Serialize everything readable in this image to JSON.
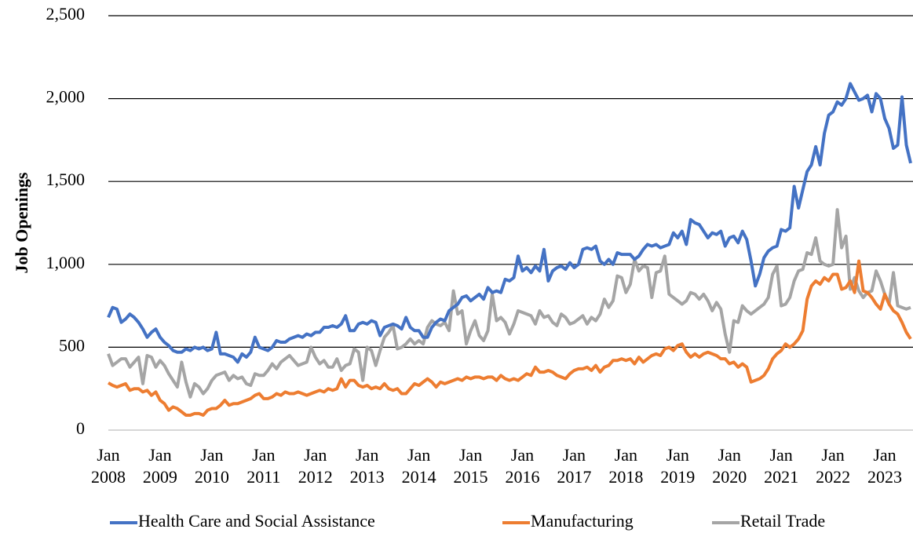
{
  "chart_data": {
    "type": "line",
    "y_label": "Job Openings",
    "categories": [
      "Jan 2008",
      null,
      null,
      null,
      null,
      null,
      null,
      null,
      null,
      null,
      null,
      null,
      "Jan 2009",
      null,
      null,
      null,
      null,
      null,
      null,
      null,
      null,
      null,
      null,
      null,
      "Jan 2010",
      null,
      null,
      null,
      null,
      null,
      null,
      null,
      null,
      null,
      null,
      null,
      "Jan 2011",
      null,
      null,
      null,
      null,
      null,
      null,
      null,
      null,
      null,
      null,
      null,
      "Jan 2012",
      null,
      null,
      null,
      null,
      null,
      null,
      null,
      null,
      null,
      null,
      null,
      "Jan 2013",
      null,
      null,
      null,
      null,
      null,
      null,
      null,
      null,
      null,
      null,
      null,
      "Jan 2014",
      null,
      null,
      null,
      null,
      null,
      null,
      null,
      null,
      null,
      null,
      null,
      "Jan 2015",
      null,
      null,
      null,
      null,
      null,
      null,
      null,
      null,
      null,
      null,
      null,
      "Jan 2016",
      null,
      null,
      null,
      null,
      null,
      null,
      null,
      null,
      null,
      null,
      null,
      "Jan 2017",
      null,
      null,
      null,
      null,
      null,
      null,
      null,
      null,
      null,
      null,
      null,
      "Jan 2018",
      null,
      null,
      null,
      null,
      null,
      null,
      null,
      null,
      null,
      null,
      null,
      "Jan 2019",
      null,
      null,
      null,
      null,
      null,
      null,
      null,
      null,
      null,
      null,
      null,
      "Jan 2020",
      null,
      null,
      null,
      null,
      null,
      null,
      null,
      null,
      null,
      null,
      null,
      "Jan 2021",
      null,
      null,
      null,
      null,
      null,
      null,
      null,
      null,
      null,
      null,
      null,
      "Jan 2022",
      null,
      null,
      null,
      null,
      null,
      null,
      null,
      null,
      null,
      null,
      null,
      "Jan 2023",
      null,
      null,
      null,
      null,
      null,
      null
    ],
    "series": [
      {
        "name": "Health Care and Social Assistance",
        "color": "#4472c4",
        "values": [
          680,
          740,
          730,
          650,
          670,
          700,
          680,
          650,
          610,
          560,
          590,
          610,
          560,
          530,
          510,
          480,
          470,
          470,
          490,
          480,
          500,
          490,
          500,
          480,
          490,
          590,
          460,
          460,
          450,
          440,
          410,
          460,
          440,
          470,
          560,
          500,
          490,
          480,
          500,
          540,
          530,
          530,
          550,
          560,
          570,
          560,
          580,
          570,
          590,
          590,
          620,
          620,
          630,
          620,
          640,
          690,
          600,
          600,
          640,
          650,
          640,
          660,
          650,
          570,
          620,
          630,
          640,
          630,
          610,
          680,
          620,
          600,
          600,
          560,
          560,
          620,
          650,
          670,
          660,
          720,
          740,
          760,
          800,
          810,
          780,
          800,
          820,
          790,
          860,
          830,
          840,
          830,
          910,
          900,
          920,
          1050,
          960,
          980,
          950,
          990,
          960,
          1090,
          900,
          960,
          980,
          990,
          970,
          1010,
          980,
          1000,
          1090,
          1100,
          1090,
          1110,
          1020,
          1000,
          1030,
          1000,
          1070,
          1060,
          1060,
          1060,
          1030,
          1050,
          1090,
          1120,
          1110,
          1120,
          1100,
          1110,
          1120,
          1190,
          1160,
          1200,
          1120,
          1270,
          1250,
          1240,
          1200,
          1160,
          1190,
          1180,
          1200,
          1110,
          1160,
          1170,
          1130,
          1200,
          1150,
          1020,
          870,
          940,
          1040,
          1080,
          1100,
          1110,
          1210,
          1200,
          1220,
          1470,
          1340,
          1450,
          1560,
          1600,
          1710,
          1600,
          1790,
          1900,
          1920,
          1980,
          1960,
          2000,
          2090,
          2040,
          1990,
          2000,
          2020,
          1920,
          2030,
          2000,
          1880,
          1820,
          1700,
          1720,
          2010,
          1720,
          1610
        ]
      },
      {
        "name": "Manufacturing",
        "color": "#ed7d31",
        "values": [
          285,
          270,
          260,
          270,
          280,
          240,
          250,
          250,
          230,
          240,
          210,
          230,
          180,
          160,
          120,
          140,
          130,
          110,
          90,
          90,
          100,
          100,
          90,
          120,
          130,
          130,
          150,
          180,
          150,
          160,
          160,
          170,
          180,
          190,
          210,
          220,
          190,
          190,
          200,
          220,
          210,
          230,
          220,
          220,
          230,
          220,
          210,
          220,
          230,
          240,
          230,
          250,
          240,
          250,
          310,
          260,
          300,
          300,
          270,
          260,
          270,
          250,
          260,
          250,
          280,
          250,
          240,
          250,
          220,
          220,
          250,
          280,
          270,
          290,
          310,
          290,
          260,
          290,
          280,
          290,
          300,
          310,
          300,
          320,
          310,
          320,
          320,
          310,
          320,
          320,
          300,
          330,
          310,
          300,
          310,
          300,
          320,
          340,
          330,
          380,
          350,
          350,
          360,
          350,
          330,
          320,
          310,
          340,
          360,
          370,
          370,
          380,
          360,
          390,
          350,
          380,
          390,
          420,
          420,
          430,
          420,
          430,
          400,
          440,
          410,
          430,
          450,
          460,
          450,
          490,
          500,
          480,
          510,
          520,
          470,
          440,
          460,
          440,
          460,
          470,
          460,
          450,
          430,
          430,
          400,
          410,
          380,
          400,
          380,
          290,
          300,
          310,
          330,
          370,
          430,
          460,
          480,
          520,
          500,
          520,
          550,
          600,
          790,
          870,
          900,
          880,
          920,
          900,
          940,
          940,
          850,
          860,
          900,
          830,
          1020,
          840,
          830,
          800,
          760,
          730,
          820,
          760,
          720,
          700,
          650,
          590,
          550
        ]
      },
      {
        "name": "Retail Trade",
        "color": "#a5a5a5",
        "values": [
          460,
          390,
          410,
          430,
          430,
          380,
          410,
          440,
          280,
          450,
          440,
          380,
          420,
          390,
          340,
          300,
          260,
          410,
          290,
          200,
          280,
          260,
          220,
          250,
          300,
          330,
          340,
          350,
          300,
          330,
          310,
          320,
          280,
          270,
          340,
          330,
          330,
          360,
          400,
          370,
          410,
          430,
          450,
          420,
          390,
          400,
          410,
          500,
          440,
          400,
          420,
          380,
          380,
          430,
          360,
          390,
          400,
          490,
          470,
          300,
          500,
          480,
          390,
          480,
          560,
          590,
          630,
          490,
          500,
          520,
          550,
          520,
          540,
          520,
          620,
          660,
          640,
          630,
          650,
          600,
          840,
          700,
          720,
          520,
          600,
          660,
          570,
          540,
          600,
          820,
          660,
          680,
          650,
          580,
          640,
          720,
          710,
          700,
          690,
          640,
          720,
          680,
          690,
          650,
          630,
          700,
          680,
          640,
          650,
          670,
          690,
          640,
          680,
          660,
          700,
          790,
          740,
          780,
          930,
          920,
          830,
          880,
          1030,
          960,
          990,
          980,
          800,
          950,
          960,
          1050,
          820,
          800,
          780,
          760,
          780,
          830,
          820,
          790,
          820,
          780,
          720,
          770,
          730,
          580,
          470,
          660,
          650,
          750,
          720,
          700,
          720,
          740,
          760,
          800,
          940,
          990,
          750,
          760,
          800,
          900,
          960,
          970,
          1070,
          1060,
          1160,
          1020,
          1000,
          990,
          1000,
          1330,
          1100,
          1170,
          850,
          920,
          840,
          800,
          830,
          840,
          960,
          900,
          820,
          760,
          950,
          750,
          740,
          730,
          740
        ]
      }
    ],
    "ylim": [
      0,
      2500
    ],
    "yticks": [
      0,
      500,
      {
        "value": 1000,
        "label": "1,000"
      },
      {
        "value": 1500,
        "label": "1,500"
      },
      {
        "value": 2000,
        "label": "2,000"
      },
      {
        "value": 2500,
        "label": "2,500"
      }
    ],
    "grid": true
  }
}
